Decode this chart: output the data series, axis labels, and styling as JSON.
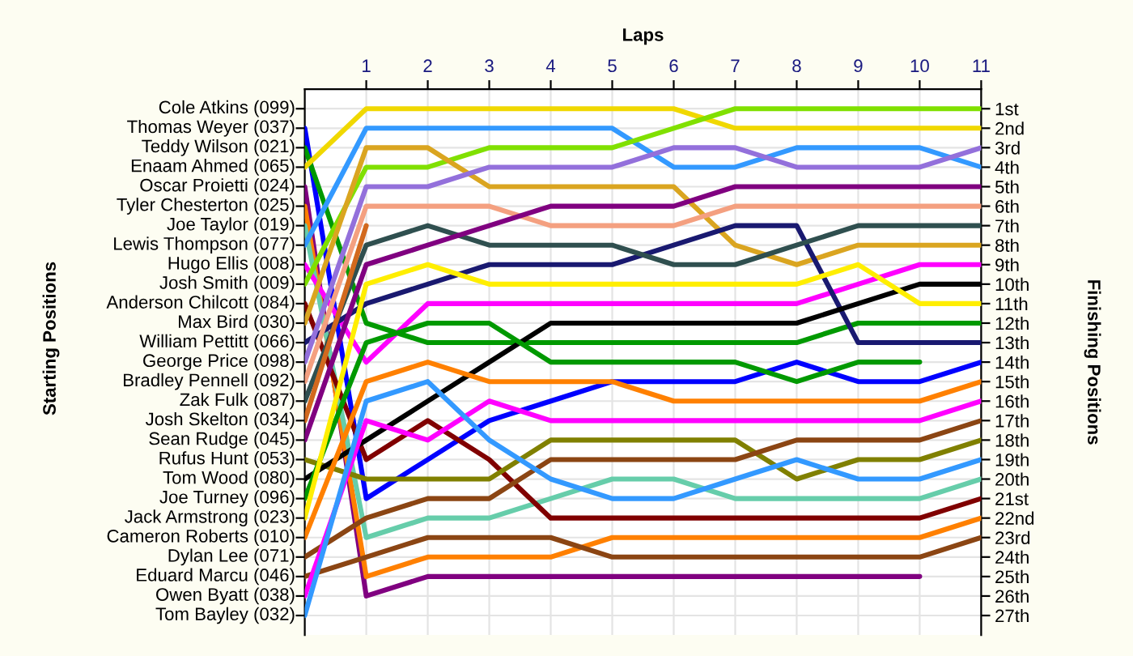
{
  "chart_data": {
    "type": "line",
    "xlabel": "Laps",
    "y2label": "Finishing Positions",
    "x": [
      0,
      1,
      2,
      3,
      4,
      5,
      6,
      7,
      8,
      9,
      10,
      11
    ],
    "xlim": [
      0,
      11
    ],
    "xticks": [
      1,
      2,
      3,
      4,
      5,
      6,
      7,
      8,
      9,
      10,
      11
    ],
    "y2lim": [
      28,
      0
    ],
    "y2ticks": [
      {
        "value": 1,
        "label": "1st"
      },
      {
        "value": 2,
        "label": "2nd"
      },
      {
        "value": 3,
        "label": "3rd"
      },
      {
        "value": 4,
        "label": "4th"
      },
      {
        "value": 5,
        "label": "5th"
      },
      {
        "value": 6,
        "label": "6th"
      },
      {
        "value": 7,
        "label": "7th"
      },
      {
        "value": 8,
        "label": "8th"
      },
      {
        "value": 9,
        "label": "9th"
      },
      {
        "value": 10,
        "label": "10th"
      },
      {
        "value": 11,
        "label": "11th"
      },
      {
        "value": 12,
        "label": "12th"
      },
      {
        "value": 13,
        "label": "13th"
      },
      {
        "value": 14,
        "label": "14th"
      },
      {
        "value": 15,
        "label": "15th"
      },
      {
        "value": 16,
        "label": "16th"
      },
      {
        "value": 17,
        "label": "17th"
      },
      {
        "value": 18,
        "label": "18th"
      },
      {
        "value": 19,
        "label": "19th"
      },
      {
        "value": 20,
        "label": "20th"
      },
      {
        "value": 21,
        "label": "21st"
      },
      {
        "value": 22,
        "label": "22nd"
      },
      {
        "value": 23,
        "label": "23rd"
      },
      {
        "value": 24,
        "label": "24th"
      },
      {
        "value": 25,
        "label": "25th"
      },
      {
        "value": 26,
        "label": "26th"
      },
      {
        "value": 27,
        "label": "27th"
      }
    ],
    "annotations": [
      "Starting Positions",
      "Cole Atkins (099)",
      "Thomas Weyer (037)",
      "Teddy Wilson (021)",
      "Enaam Ahmed (065)",
      "Oscar Proietti (024)",
      "Tyler Chesterton (025)",
      "Joe Taylor (019)",
      "Lewis Thompson (077)",
      "Hugo Ellis (008)",
      "Josh Smith (009)",
      "Anderson Chilcott (084)",
      "Max Bird (030)",
      "William Pettitt (066)",
      "George Price (098)",
      "Bradley Pennell (092)",
      "Zak Fulk (087)",
      "Josh Skelton (034)",
      "Sean Rudge (045)",
      "Rufus Hunt (053)",
      "Tom Wood (080)",
      "Joe Turney (096)",
      "Jack Armstrong (023)",
      "Cameron Roberts (010)",
      "Dylan Lee (071)",
      "Eduard Marcu (046)",
      "Owen Byatt (038)",
      "Tom Bayley (032)"
    ],
    "grid": true,
    "marker": "none",
    "line_style": "solid",
    "series": [
      {
        "axis": "y2",
        "color": "#0000ff",
        "values": [
          2,
          21,
          19,
          17,
          16,
          15,
          15,
          15,
          14,
          15,
          15,
          14
        ]
      },
      {
        "axis": "y2",
        "color": "#009900",
        "values": [
          3,
          12,
          13,
          13,
          13,
          13,
          13,
          13,
          13,
          12,
          12,
          12
        ]
      },
      {
        "axis": "y2",
        "color": "#f0d800",
        "values": [
          4,
          1,
          1,
          1,
          1,
          1,
          1,
          2,
          2,
          2,
          2,
          2
        ]
      },
      {
        "axis": "y2",
        "color": "#800080",
        "values": [
          5,
          26,
          25,
          25,
          25,
          25,
          25,
          25,
          25,
          25,
          25,
          null
        ]
      },
      {
        "axis": "y2",
        "color": "#ff8000",
        "values": [
          6,
          25,
          24,
          24,
          24,
          23,
          23,
          23,
          23,
          23,
          23,
          22
        ]
      },
      {
        "axis": "y2",
        "color": "#66cdaa",
        "values": [
          7,
          23,
          22,
          22,
          21,
          20,
          20,
          21,
          21,
          21,
          21,
          20
        ]
      },
      {
        "axis": "y2",
        "color": "#3399ff",
        "values": [
          8,
          2,
          2,
          2,
          2,
          2,
          4,
          4,
          3,
          3,
          3,
          4
        ]
      },
      {
        "axis": "y2",
        "color": "#ff00ff",
        "values": [
          9,
          14,
          11,
          11,
          11,
          11,
          11,
          11,
          11,
          10,
          9,
          9
        ]
      },
      {
        "axis": "y2",
        "color": "#80e000",
        "values": [
          10,
          4,
          4,
          3,
          3,
          3,
          2,
          1,
          1,
          1,
          1,
          1
        ]
      },
      {
        "axis": "y2",
        "color": "#800000",
        "values": [
          11,
          19,
          17,
          19,
          22,
          22,
          22,
          22,
          22,
          22,
          22,
          21
        ]
      },
      {
        "axis": "y2",
        "color": "#daa520",
        "values": [
          12,
          3,
          3,
          5,
          5,
          5,
          5,
          8,
          9,
          8,
          8,
          8
        ]
      },
      {
        "axis": "y2",
        "color": "#191970",
        "values": [
          13,
          11,
          10,
          9,
          9,
          9,
          8,
          7,
          7,
          13,
          13,
          13
        ]
      },
      {
        "axis": "y2",
        "color": "#9370db",
        "values": [
          14,
          5,
          5,
          4,
          4,
          4,
          3,
          3,
          4,
          4,
          4,
          3
        ]
      },
      {
        "axis": "y2",
        "color": "#f4a080",
        "values": [
          15,
          6,
          6,
          6,
          7,
          7,
          7,
          6,
          6,
          6,
          6,
          6
        ]
      },
      {
        "axis": "y2",
        "color": "#2f4f4f",
        "values": [
          16,
          8,
          7,
          8,
          8,
          8,
          9,
          9,
          8,
          7,
          7,
          7
        ]
      },
      {
        "axis": "y2",
        "color": "#d2691e",
        "values": [
          17,
          7,
          null,
          null,
          null,
          null,
          null,
          null,
          null,
          null,
          null,
          null
        ]
      },
      {
        "axis": "y2",
        "color": "#800080",
        "values": [
          18,
          9,
          8,
          7,
          6,
          6,
          6,
          5,
          5,
          5,
          5,
          5
        ]
      },
      {
        "axis": "y2",
        "color": "#808000",
        "values": [
          19,
          20,
          20,
          20,
          18,
          18,
          18,
          18,
          20,
          19,
          19,
          18
        ]
      },
      {
        "axis": "y2",
        "color": "#000000",
        "values": [
          20,
          18,
          16,
          14,
          12,
          12,
          12,
          12,
          12,
          11,
          10,
          10
        ]
      },
      {
        "axis": "y2",
        "color": "#009900",
        "values": [
          21,
          13,
          12,
          12,
          14,
          14,
          14,
          14,
          15,
          14,
          14,
          null
        ]
      },
      {
        "axis": "y2",
        "color": "#ffee00",
        "values": [
          22,
          10,
          9,
          10,
          10,
          10,
          10,
          10,
          10,
          9,
          11,
          11
        ]
      },
      {
        "axis": "y2",
        "color": "#ff8000",
        "values": [
          23,
          15,
          14,
          15,
          15,
          15,
          16,
          16,
          16,
          16,
          16,
          15
        ]
      },
      {
        "axis": "y2",
        "color": "#8b4513",
        "values": [
          24,
          22,
          21,
          21,
          19,
          19,
          19,
          19,
          18,
          18,
          18,
          17
        ]
      },
      {
        "axis": "y2",
        "color": "#8b4513",
        "values": [
          25,
          24,
          23,
          23,
          23,
          24,
          24,
          24,
          24,
          24,
          24,
          23
        ]
      },
      {
        "axis": "y2",
        "color": "#ff00ff",
        "values": [
          26,
          17,
          18,
          16,
          17,
          17,
          17,
          17,
          17,
          17,
          17,
          16
        ]
      },
      {
        "axis": "y2",
        "color": "#3399ff",
        "values": [
          27,
          16,
          15,
          18,
          20,
          21,
          21,
          20,
          19,
          20,
          20,
          19
        ]
      }
    ]
  }
}
